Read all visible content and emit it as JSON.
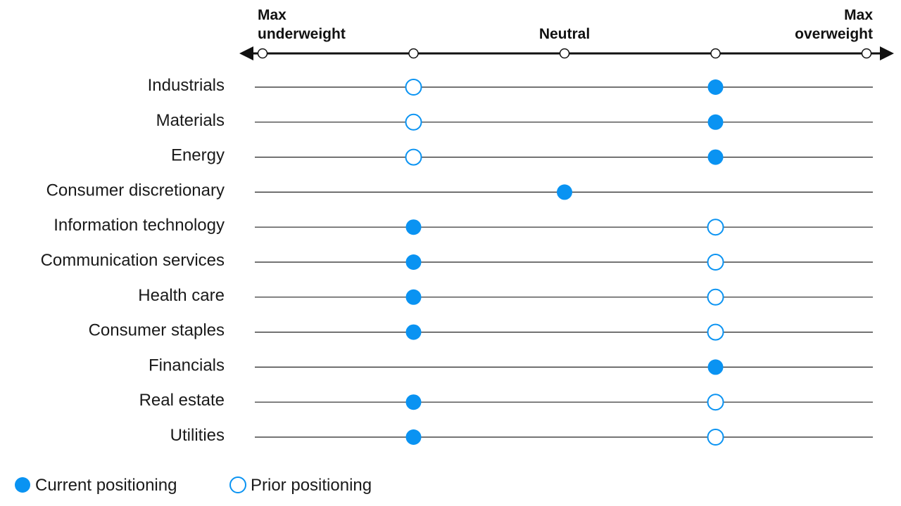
{
  "chart_data": {
    "type": "scatter",
    "scale": {
      "positions": [
        -2,
        -1,
        0,
        1,
        2
      ],
      "labels": [
        {
          "position": -2,
          "lines": [
            "Max",
            "underweight"
          ]
        },
        {
          "position": 0,
          "lines": [
            "Neutral"
          ]
        },
        {
          "position": 2,
          "lines": [
            "Max",
            "overweight"
          ]
        }
      ]
    },
    "categories": [
      "Industrials",
      "Materials",
      "Energy",
      "Consumer discretionary",
      "Information technology",
      "Communication services",
      "Health care",
      "Consumer staples",
      "Financials",
      "Real estate",
      "Utilities"
    ],
    "series": [
      {
        "name": "Current positioning",
        "marker": "filled",
        "values": [
          1,
          1,
          1,
          0,
          -1,
          -1,
          -1,
          -1,
          1,
          -1,
          -1
        ]
      },
      {
        "name": "Prior positioning",
        "marker": "hollow",
        "values": [
          -1,
          -1,
          -1,
          null,
          1,
          1,
          1,
          1,
          null,
          1,
          1
        ]
      }
    ],
    "colors": {
      "marker": "#0a93f2",
      "axis": "#111111",
      "row_line": "#222222"
    }
  }
}
